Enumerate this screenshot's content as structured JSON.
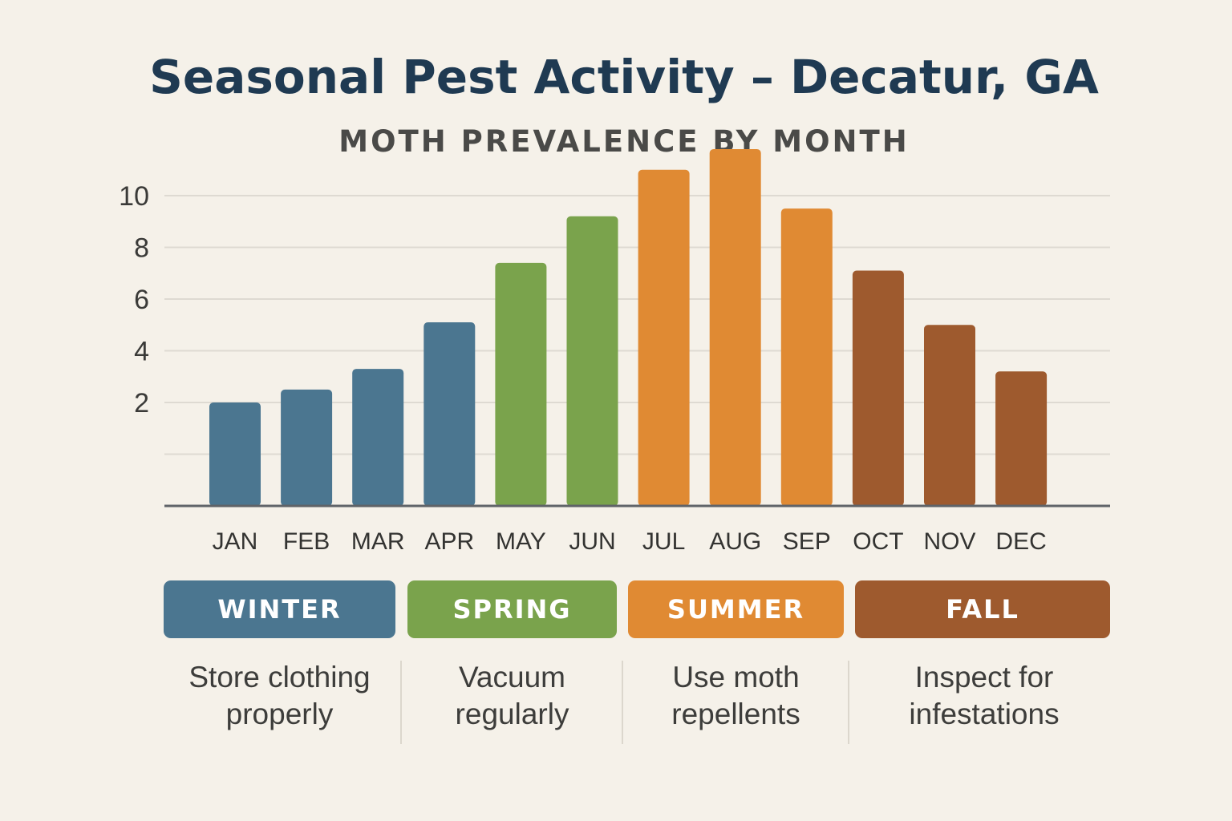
{
  "title": "Seasonal Pest Activity – Decatur, GA",
  "subtitle": "MOTH PREVALENCE BY MONTH",
  "chart_data": {
    "type": "bar",
    "title": "Seasonal Pest Activity – Decatur, GA",
    "subtitle": "MOTH PREVALENCE BY MONTH",
    "xlabel": "",
    "ylabel": "",
    "categories": [
      "JAN",
      "FEB",
      "MAR",
      "APR",
      "MAY",
      "JUN",
      "JUL",
      "AUG",
      "SEP",
      "OCT",
      "NOV",
      "DEC"
    ],
    "values": [
      2.0,
      2.5,
      3.3,
      5.1,
      7.4,
      9.2,
      11.0,
      11.8,
      9.5,
      7.1,
      5.0,
      3.2
    ],
    "bar_colors": [
      "#4b7690",
      "#4b7690",
      "#4b7690",
      "#4b7690",
      "#7aa34c",
      "#7aa34c",
      "#e08a33",
      "#e08a33",
      "#e08a33",
      "#9e5a2e",
      "#9e5a2e",
      "#9e5a2e"
    ],
    "ylim": [
      0,
      12
    ],
    "y_ticks": [
      2,
      4,
      6,
      8,
      10
    ],
    "gridlines": [
      2,
      4,
      6,
      8,
      10,
      12
    ],
    "grid": true,
    "axis_color": "#5f6368",
    "grid_color": "#dedad2"
  },
  "seasons": [
    {
      "label": "WINTER",
      "color": "#4b7690",
      "tip": [
        "Store clothing",
        "properly"
      ]
    },
    {
      "label": "SPRING",
      "color": "#7aa34c",
      "tip": [
        "Vacuum",
        "regularly"
      ]
    },
    {
      "label": "SUMMER",
      "color": "#e08a33",
      "tip": [
        "Use moth",
        "repellents"
      ]
    },
    {
      "label": "FALL",
      "color": "#9e5a2e",
      "tip": [
        "Inspect for",
        "infestations"
      ]
    }
  ]
}
